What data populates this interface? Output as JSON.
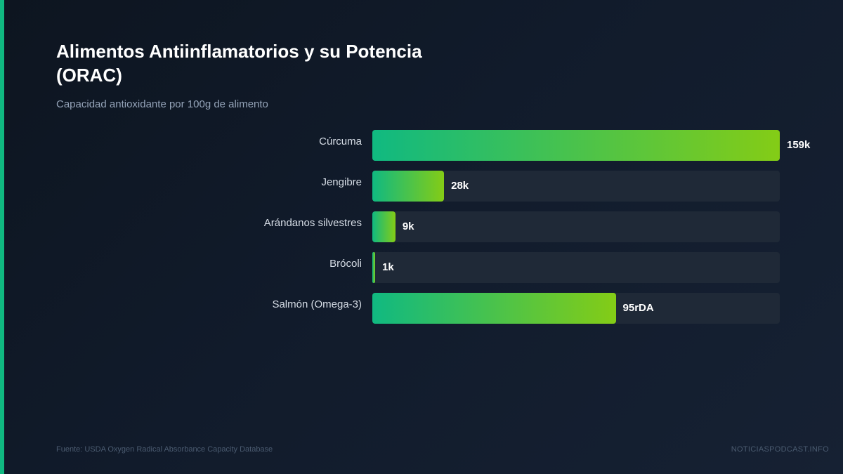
{
  "header": {
    "title": "Alimentos Antiinflamatorios y su Potencia (ORAC)",
    "subtitle": "Capacidad antioxidante por 100g de alimento"
  },
  "footer": {
    "source": "Fuente: USDA Oxygen Radical Absorbance Capacity Database",
    "brand": "NOTICIASPODCAST.INFO"
  },
  "colors": {
    "accent": "#10b981",
    "bar_start": "#10b981",
    "bar_end": "#84cc16",
    "track": "#1f2937"
  },
  "chart_data": {
    "type": "bar",
    "orientation": "horizontal",
    "title": "Alimentos Antiinflamatorios y su Potencia (ORAC)",
    "subtitle": "Capacidad antioxidante por 100g de alimento",
    "categories": [
      "Cúrcuma",
      "Jengibre",
      "Arándanos silvestres",
      "Brócoli",
      "Salmón (Omega-3)"
    ],
    "values": [
      159,
      28,
      9,
      1,
      95
    ],
    "value_labels": [
      "159k",
      "28k",
      "9k",
      "1k",
      "95rDA"
    ],
    "xlim": [
      0,
      159
    ],
    "grid": false
  }
}
